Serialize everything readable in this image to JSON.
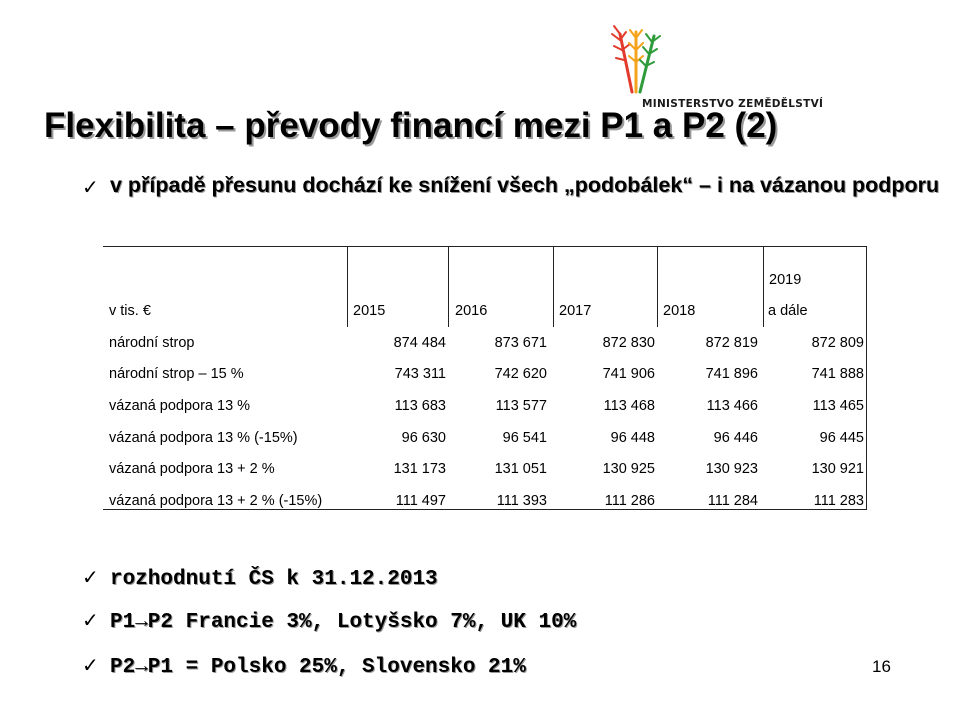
{
  "logo": {
    "text": "MINISTERSTVO ZEMĚDĚLSTVÍ",
    "icon": "wheat-wreath-icon",
    "colors": [
      "#e23a2b",
      "#f5a31a",
      "#2f9b3a"
    ]
  },
  "title": "Flexibilita – převody financí mezi P1 a P2 (2)",
  "bullets_top": [
    {
      "icon": "check-icon",
      "text": "v případě přesunu dochází ke snížení všech „podobálek“ – i na vázanou podporu"
    }
  ],
  "table": {
    "unit_label": "v tis. €",
    "columns": [
      "2015",
      "2016",
      "2017",
      "2018",
      "2019",
      "a dále"
    ],
    "rows": [
      {
        "label": "národní strop",
        "values": [
          "874 484",
          "873 671",
          "872 830",
          "872 819",
          "872 809"
        ]
      },
      {
        "label": "národní strop – 15 %",
        "values": [
          "743 311",
          "742 620",
          "741 906",
          "741 896",
          "741 888"
        ]
      },
      {
        "label": "vázaná podpora 13 %",
        "values": [
          "113 683",
          "113 577",
          "113 468",
          "113 466",
          "113 465"
        ]
      },
      {
        "label": "vázaná podpora 13 % (-15%)",
        "values": [
          "96 630",
          "96 541",
          "96 448",
          "96 446",
          "96 445"
        ]
      },
      {
        "label": "vázaná podpora 13 + 2 %",
        "values": [
          "131 173",
          "131 051",
          "130 925",
          "130 923",
          "130 921"
        ]
      },
      {
        "label": "vázaná podpora 13 + 2 % (-15%)",
        "values": [
          "111 497",
          "111 393",
          "111 286",
          "111 284",
          "111 283"
        ]
      }
    ]
  },
  "bullets_bottom": [
    {
      "icon": "check-icon",
      "text": "rozhodnutí ČS k 31.12.2013"
    },
    {
      "icon": "check-icon",
      "text": "P1→P2 Francie 3%, Lotyšsko 7%, UK 10%"
    },
    {
      "icon": "check-icon",
      "text": "P2→P1 = Polsko 25%, Slovensko 21%"
    }
  ],
  "check_glyph": "✓",
  "page_number": "16"
}
